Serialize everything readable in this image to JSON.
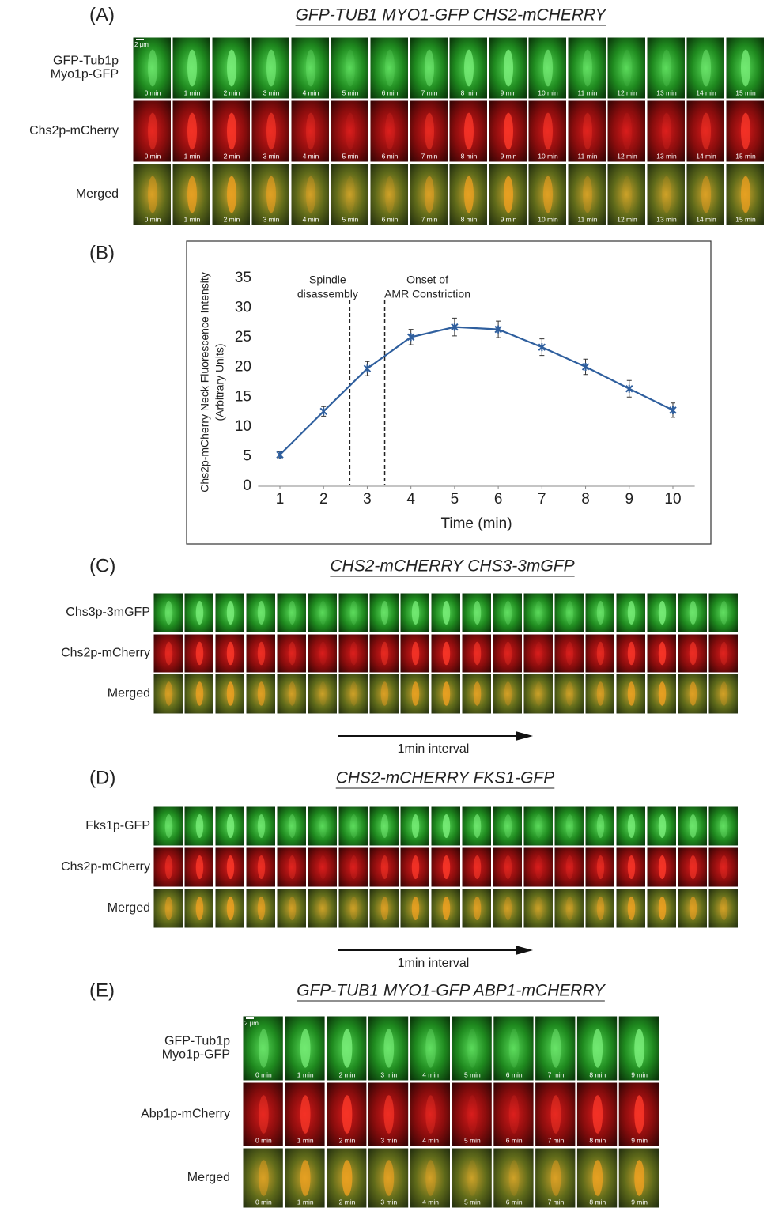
{
  "panel_a": {
    "letter": "(A)",
    "title": "GFP-TUB1 MYO1-GFP CHS2-mCHERRY",
    "scale_bar": "2 μm",
    "rows": [
      {
        "label": [
          "GFP-Tub1p",
          "Myo1p-GFP"
        ]
      },
      {
        "label": [
          "Chs2p-mCherry"
        ]
      },
      {
        "label": [
          "Merged"
        ]
      }
    ],
    "times": [
      "0 min",
      "1 min",
      "2 min",
      "3 min",
      "4 min",
      "5 min",
      "6 min",
      "7 min",
      "8 min",
      "9 min",
      "10 min",
      "11 min",
      "12 min",
      "13 min",
      "14 min",
      "15 min"
    ]
  },
  "panel_b": {
    "letter": "(B)"
  },
  "chart_data": {
    "type": "line",
    "xlabel": "Time (min)",
    "ylabel": [
      "Chs2p-mCherry Neck Fluorescence Intensity",
      "(Arbitrary Units)"
    ],
    "x": [
      1,
      2,
      3,
      4,
      5,
      6,
      7,
      8,
      9,
      10
    ],
    "series": [
      {
        "color": "#2f5f9e",
        "values": [
          5.3,
          12.6,
          19.8,
          25.1,
          26.8,
          26.4,
          23.4,
          20.1,
          16.4,
          12.8
        ],
        "errors": [
          0.5,
          0.8,
          1.2,
          1.3,
          1.5,
          1.4,
          1.4,
          1.3,
          1.4,
          1.2
        ]
      }
    ],
    "xlim": [
      0.5,
      10.5
    ],
    "ylim": [
      0,
      35
    ],
    "xticks": [
      1,
      2,
      3,
      4,
      5,
      6,
      7,
      8,
      9,
      10
    ],
    "yticks": [
      0,
      5,
      10,
      15,
      20,
      25,
      30,
      35
    ],
    "markers": [
      {
        "x": 2.6,
        "label": [
          "Spindle",
          "disassembly"
        ]
      },
      {
        "x": 3.4,
        "label": [
          "Onset of",
          "AMR Constriction"
        ]
      }
    ]
  },
  "panel_c": {
    "letter": "(C)",
    "title": "CHS2-mCHERRY CHS3-3mGFP",
    "rows": [
      {
        "label": [
          "Chs3p-3mGFP"
        ]
      },
      {
        "label": [
          "Chs2p-mCherry"
        ]
      },
      {
        "label": [
          "Merged"
        ]
      }
    ],
    "interval": "1min interval"
  },
  "panel_d": {
    "letter": "(D)",
    "title": "CHS2-mCHERRY FKS1-GFP",
    "rows": [
      {
        "label": [
          "Fks1p-GFP"
        ]
      },
      {
        "label": [
          "Chs2p-mCherry"
        ]
      },
      {
        "label": [
          "Merged"
        ]
      }
    ],
    "interval": "1min interval"
  },
  "panel_e": {
    "letter": "(E)",
    "title": "GFP-TUB1 MYO1-GFP ABP1-mCHERRY",
    "scale_bar": "2 μm",
    "rows": [
      {
        "label": [
          "GFP-Tub1p",
          "Myo1p-GFP"
        ]
      },
      {
        "label": [
          "Abp1p-mCherry"
        ]
      },
      {
        "label": [
          "Merged"
        ]
      }
    ],
    "times": [
      "0 min",
      "1 min",
      "2 min",
      "3 min",
      "4 min",
      "5 min",
      "6 min",
      "7 min",
      "8 min",
      "9 min"
    ]
  }
}
